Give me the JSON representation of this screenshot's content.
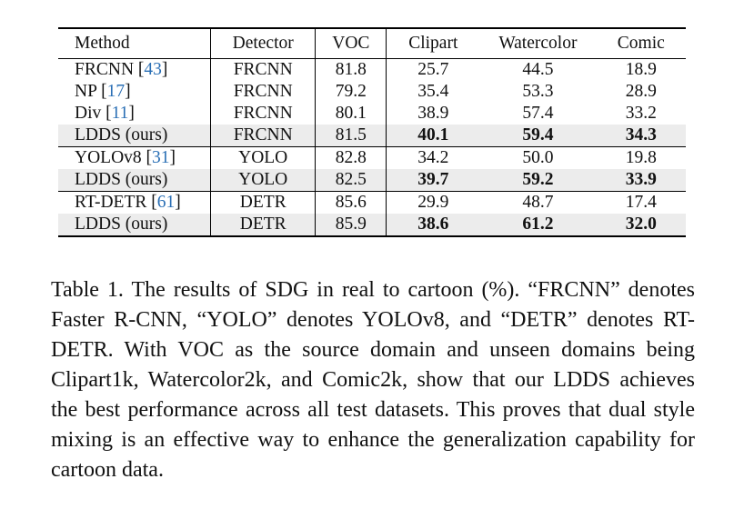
{
  "table": {
    "headers": [
      "Method",
      "Detector",
      "VOC",
      "Clipart",
      "Watercolor",
      "Comic"
    ],
    "groups": [
      [
        {
          "method": "FRCNN",
          "ref": "43",
          "detector": "FRCNN",
          "voc": "81.8",
          "clipart": "25.7",
          "watercolor": "44.5",
          "comic": "18.9"
        },
        {
          "method": "NP",
          "ref": "17",
          "detector": "FRCNN",
          "voc": "79.2",
          "clipart": "35.4",
          "watercolor": "53.3",
          "comic": "28.9"
        },
        {
          "method": "Div",
          "ref": "11",
          "detector": "FRCNN",
          "voc": "80.1",
          "clipart": "38.9",
          "watercolor": "57.4",
          "comic": "33.2"
        },
        {
          "method": "LDDS (ours)",
          "detector": "FRCNN",
          "voc": "81.5",
          "clipart": "40.1",
          "watercolor": "59.4",
          "comic": "34.3",
          "highlight": true
        }
      ],
      [
        {
          "method": "YOLOv8",
          "ref": "31",
          "detector": "YOLO",
          "voc": "82.8",
          "clipart": "34.2",
          "watercolor": "50.0",
          "comic": "19.8"
        },
        {
          "method": "LDDS (ours)",
          "detector": "YOLO",
          "voc": "82.5",
          "clipart": "39.7",
          "watercolor": "59.2",
          "comic": "33.9",
          "highlight": true
        }
      ],
      [
        {
          "method": "RT-DETR",
          "ref": "61",
          "detector": "DETR",
          "voc": "85.6",
          "clipart": "29.9",
          "watercolor": "48.7",
          "comic": "17.4"
        },
        {
          "method": "LDDS (ours)",
          "detector": "DETR",
          "voc": "85.9",
          "clipart": "38.6",
          "watercolor": "61.2",
          "comic": "32.0",
          "highlight": true
        }
      ]
    ]
  },
  "caption": "Table 1. The results of SDG in real to cartoon (%). “FRCNN” denotes Faster R-CNN, “YOLO” denotes YOLOv8, and “DETR” denotes RT-DETR. With VOC as the source domain and unseen domains being Clipart1k, Watercolor2k, and Comic2k, show that our LDDS achieves the best performance across all test datasets. This proves that dual style mixing is an effective way to enhance the generalization capability for cartoon data."
}
